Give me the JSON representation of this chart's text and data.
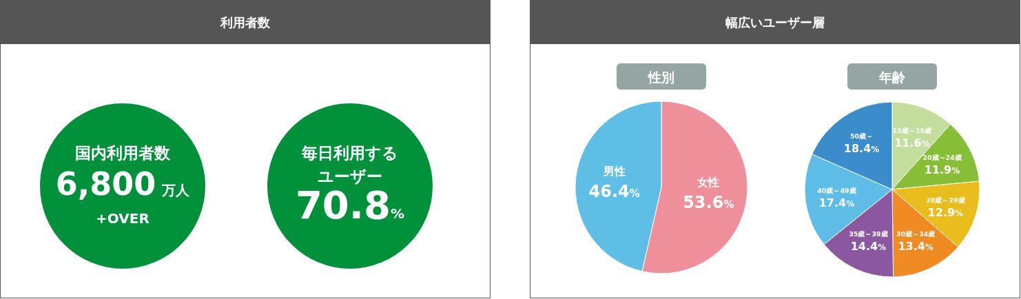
{
  "chart_data": [
    {
      "type": "other",
      "title": "利用者数",
      "annotations": [
        "国内利用者数",
        "6,800 万人",
        "+OVER",
        "毎日利用する",
        "ユーザー",
        "70.8%"
      ]
    },
    {
      "type": "pie",
      "title": "幅広いユーザー層",
      "subtitle": "性別",
      "categories": [
        "女性",
        "男性"
      ],
      "values": [
        53.6,
        46.4
      ],
      "colors": [
        "#ef8f99",
        "#5fbee6"
      ],
      "value_labels": [
        "53.6%",
        "46.4%"
      ]
    },
    {
      "type": "pie",
      "subtitle": "年齢",
      "categories": [
        "15歳～19歳",
        "20歳～24歳",
        "28歳～29歳",
        "30歳～34歳",
        "35歳～39歳",
        "40歳～49歳",
        "50歳～"
      ],
      "values": [
        11.6,
        11.9,
        12.9,
        13.4,
        14.4,
        17.4,
        18.4
      ],
      "colors": [
        "#c3de9c",
        "#86bf36",
        "#e8bd1c",
        "#ef8b22",
        "#8c57a1",
        "#5dbde6",
        "#3a8cca"
      ],
      "value_labels": [
        "11.6%",
        "11.9%",
        "12.9%",
        "13.4%",
        "14.4%",
        "17.4%",
        "18.4%"
      ]
    }
  ]
}
